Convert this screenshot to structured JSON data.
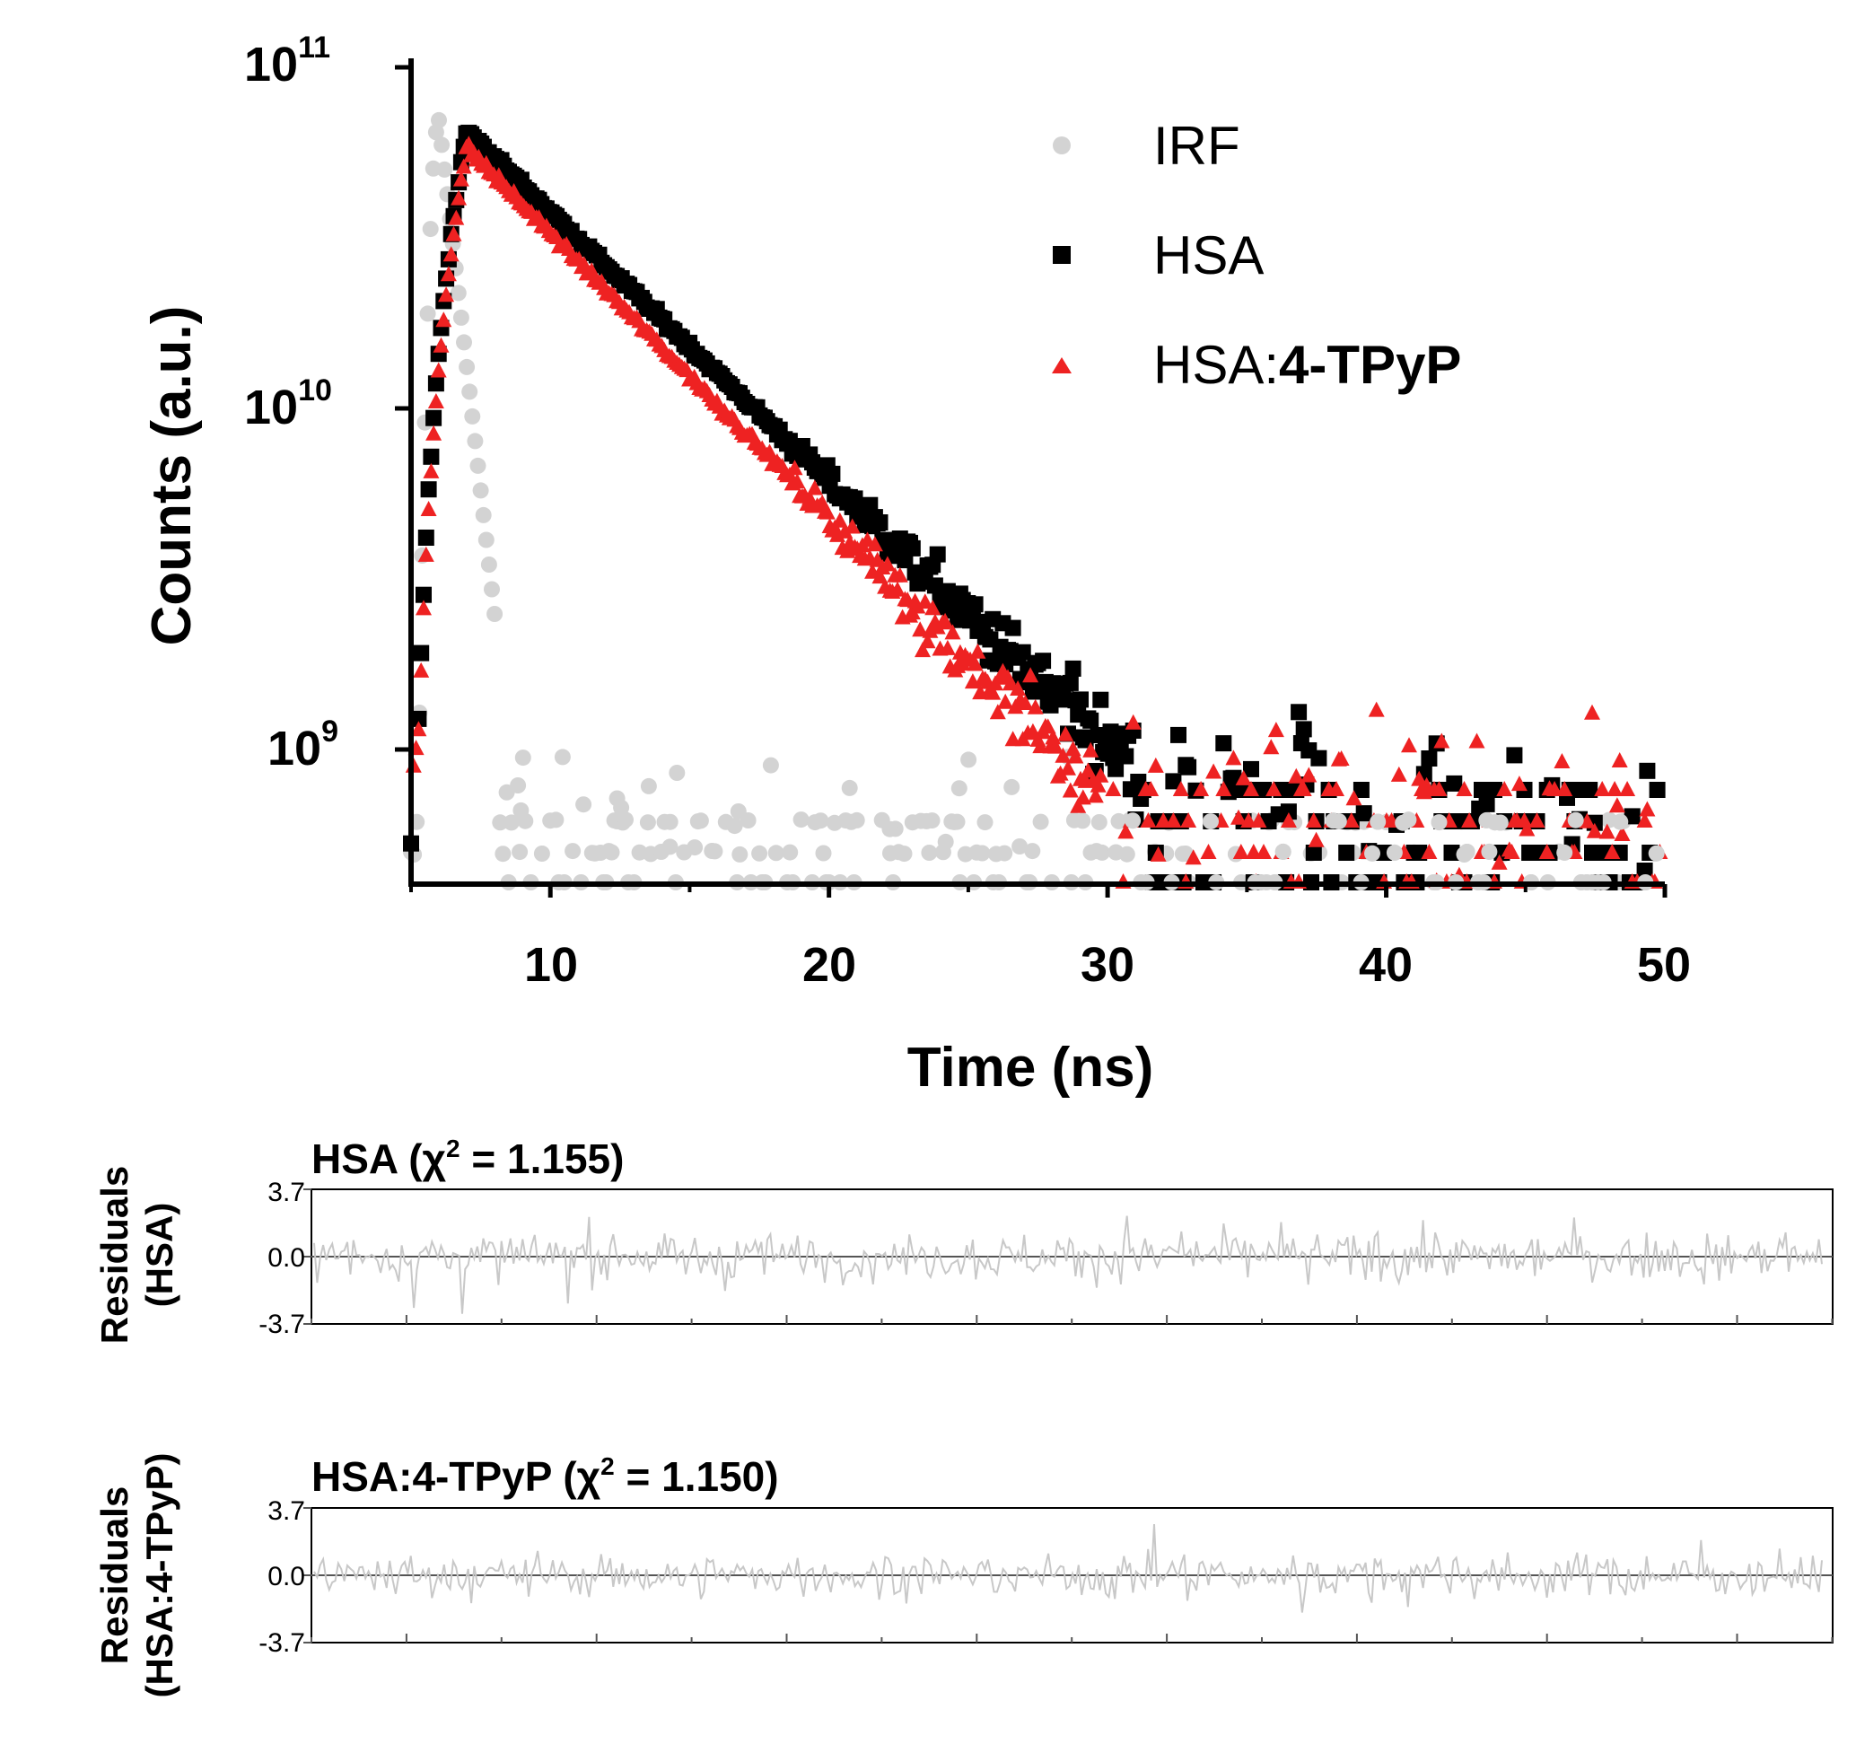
{
  "chart_data": [
    {
      "type": "scatter",
      "title": "",
      "xlabel": "Time (ns)",
      "ylabel": "Counts (a.u.)",
      "yscale": "log",
      "xlim": [
        5,
        50
      ],
      "ylim": [
        400000000,
        110000000000
      ],
      "x_ticks": [
        "10",
        "20",
        "30",
        "40",
        "50"
      ],
      "y_ticks": [
        {
          "base": "10",
          "exp": "11",
          "value": 100000000000
        },
        {
          "base": "10",
          "exp": "10",
          "value": 10000000000
        },
        {
          "base": "10",
          "exp": "9",
          "value": 1000000000
        }
      ],
      "legend": {
        "placement": "top-right",
        "entries": [
          {
            "name": "IRF",
            "marker": "circle",
            "color": "#d3d3d3"
          },
          {
            "name": "HSA",
            "marker": "square",
            "color": "#000000"
          },
          {
            "name": "HSA:",
            "name_bold": "4-TPyP",
            "marker": "triangle",
            "color": "#ee2222"
          }
        ]
      },
      "series": [
        {
          "name": "IRF",
          "peak_time": 6.0,
          "peak": 70000000000,
          "decay_ns": 0.6,
          "floor": 500000000,
          "baseline_from": 8
        },
        {
          "name": "HSA",
          "rise_start": 5.0,
          "peak_time": 7.0,
          "peak": 65000000000,
          "decay_ns": 5.5,
          "floor": 500000000,
          "noise_from": 18
        },
        {
          "name": "HSA:4-TPyP",
          "rise_start": 5.0,
          "peak_time": 7.0,
          "peak": 58000000000,
          "decay_ns": 5.2,
          "floor": 450000000,
          "noise_from": 18
        }
      ]
    },
    {
      "type": "line",
      "title": "HSA (χ",
      "title_sup": "2",
      "title_suffix": " = 1.155)",
      "ylabel_lines": [
        "Residuals",
        "(HSA)"
      ],
      "ylim": [
        -3.7,
        3.7
      ],
      "y_ticks": [
        "3.7",
        "0.0",
        "-3.7"
      ],
      "color": "#c8c8c8",
      "n_points": 500,
      "amplitude": 1.0
    },
    {
      "type": "line",
      "title": "HSA:4-TPyP (χ",
      "title_sup": "2",
      "title_suffix": " = 1.150)",
      "ylabel_lines": [
        "Residuals",
        "(HSA:4-TPyP)"
      ],
      "ylim": [
        -3.7,
        3.7
      ],
      "y_ticks": [
        "3.7",
        "0.0",
        "-3.7"
      ],
      "color": "#c8c8c8",
      "n_points": 500,
      "amplitude": 0.9
    }
  ]
}
